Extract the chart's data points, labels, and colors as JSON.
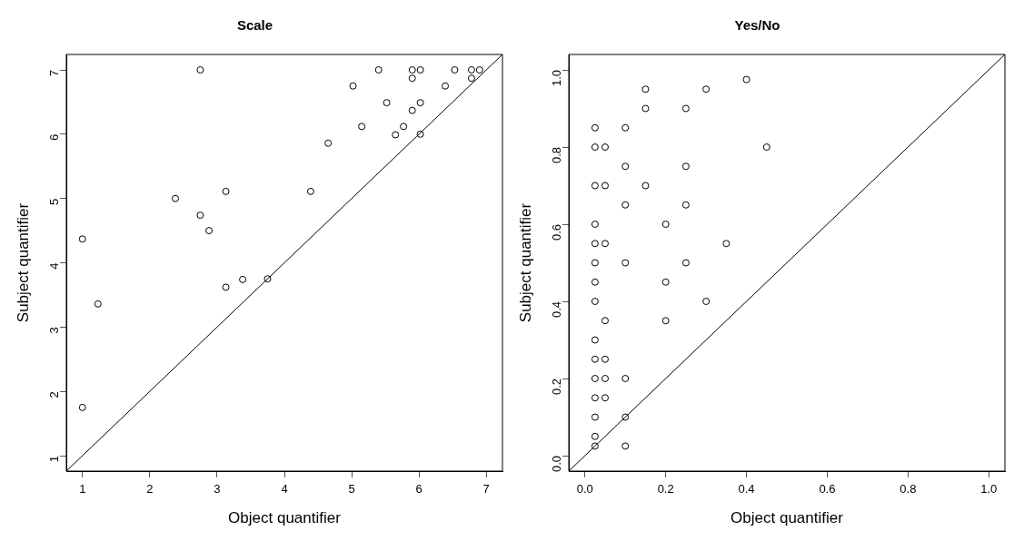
{
  "chart_data": [
    {
      "type": "scatter",
      "title": "Scale",
      "xlabel": "Object quantifier",
      "ylabel": "Subject quantifier",
      "xlim": [
        0.76,
        7.24
      ],
      "ylim": [
        0.76,
        7.24
      ],
      "xticks": [
        1,
        2,
        3,
        4,
        5,
        6,
        7
      ],
      "yticks": [
        1,
        2,
        3,
        4,
        5,
        6,
        7
      ],
      "series": [
        {
          "marker": "circle",
          "color": "#000000",
          "x": [
            2.75,
            3.13,
            2.38,
            2.75,
            2.88,
            1,
            3.13,
            3.38,
            3.75,
            1.23,
            1,
            4.39,
            4.65,
            5.02,
            5.15,
            5.4,
            5.52,
            5.65,
            5.77,
            5.9,
            5.9,
            5.9,
            6.02,
            6.02,
            6.02,
            6.39,
            6.53,
            6.78,
            6.78,
            6.9
          ],
          "values": [
            7,
            5.11,
            5,
            4.74,
            4.5,
            4.37,
            3.62,
            3.74,
            3.75,
            3.36,
            1.75,
            5.11,
            5.86,
            6.75,
            6.12,
            7,
            6.49,
            5.99,
            6.12,
            7,
            6.87,
            6.37,
            7,
            6.49,
            6,
            6.75,
            7,
            7,
            6.87,
            7
          ]
        },
        {
          "type": "line",
          "marker": "none",
          "color": "#000000",
          "x": [
            0.76,
            7.24
          ],
          "values": [
            0.76,
            7.24
          ]
        }
      ]
    },
    {
      "type": "scatter",
      "title": "Yes/No",
      "xlabel": "Object quantifier",
      "ylabel": "Subject quantifier",
      "xlim": [
        -0.04,
        1.04
      ],
      "ylim": [
        -0.04,
        1.04
      ],
      "xticks": [
        {
          "value": 0,
          "label": "0.0"
        },
        {
          "value": 0.2,
          "label": "0.2"
        },
        {
          "value": 0.4,
          "label": "0.4"
        },
        {
          "value": 0.6,
          "label": "0.6"
        },
        {
          "value": 0.8,
          "label": "0.8"
        },
        {
          "value": 1,
          "label": "1.0"
        }
      ],
      "yticks": [
        {
          "value": 0,
          "label": "0.0"
        },
        {
          "value": 0.2,
          "label": "0.2"
        },
        {
          "value": 0.4,
          "label": "0.4"
        },
        {
          "value": 0.6,
          "label": "0.6"
        },
        {
          "value": 0.8,
          "label": "0.8"
        },
        {
          "value": 1,
          "label": "1.0"
        }
      ],
      "series": [
        {
          "marker": "circle",
          "color": "#000000",
          "x": [
            0.4,
            0.15,
            0.3,
            0.15,
            0.25,
            0.025,
            0.1,
            0.025,
            0.05,
            0.45,
            0.1,
            0.25,
            0.025,
            0.05,
            0.15,
            0.1,
            0.25,
            0.025,
            0.2,
            0.025,
            0.05,
            0.35,
            0.025,
            0.1,
            0.25,
            0.025,
            0.2,
            0.025,
            0.3,
            0.05,
            0.2,
            0.025,
            0.025,
            0.05,
            0.025,
            0.05,
            0.1,
            0.025,
            0.05,
            0.025,
            0.1,
            0.025,
            0.025,
            0.1
          ],
          "values": [
            0.975,
            0.95,
            0.95,
            0.9,
            0.9,
            0.85,
            0.85,
            0.8,
            0.8,
            0.8,
            0.75,
            0.75,
            0.7,
            0.7,
            0.7,
            0.65,
            0.65,
            0.6,
            0.6,
            0.55,
            0.55,
            0.55,
            0.5,
            0.5,
            0.5,
            0.45,
            0.45,
            0.4,
            0.4,
            0.35,
            0.35,
            0.3,
            0.25,
            0.25,
            0.2,
            0.2,
            0.2,
            0.15,
            0.15,
            0.1,
            0.1,
            0.05,
            0.025,
            0.025
          ]
        },
        {
          "type": "line",
          "marker": "none",
          "color": "#000000",
          "x": [
            -0.04,
            1.04
          ],
          "values": [
            -0.04,
            1.04
          ]
        }
      ]
    }
  ]
}
